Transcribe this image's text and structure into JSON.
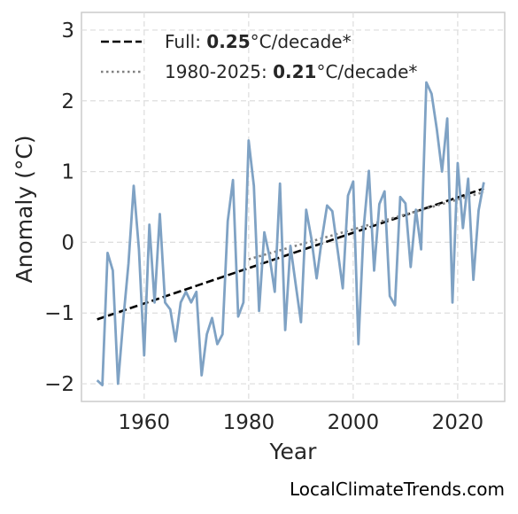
{
  "chart_data": {
    "type": "line",
    "xlabel": "Year",
    "ylabel": "Anomaly (°C)",
    "xlim": [
      1948,
      2029
    ],
    "ylim": [
      -2.25,
      3.25
    ],
    "xticks": [
      1960,
      1980,
      2000,
      2020
    ],
    "yticks": [
      -2,
      -1,
      0,
      1,
      2,
      3
    ],
    "grid": true,
    "legend_position": "top-left",
    "x": [
      1951,
      1952,
      1953,
      1954,
      1955,
      1956,
      1957,
      1958,
      1959,
      1960,
      1961,
      1962,
      1963,
      1964,
      1965,
      1966,
      1967,
      1968,
      1969,
      1970,
      1971,
      1972,
      1973,
      1974,
      1975,
      1976,
      1977,
      1978,
      1979,
      1980,
      1981,
      1982,
      1983,
      1984,
      1985,
      1986,
      1987,
      1988,
      1989,
      1990,
      1991,
      1992,
      1993,
      1994,
      1995,
      1996,
      1997,
      1998,
      1999,
      2000,
      2001,
      2002,
      2003,
      2004,
      2005,
      2006,
      2007,
      2008,
      2009,
      2010,
      2011,
      2012,
      2013,
      2014,
      2015,
      2016,
      2017,
      2018,
      2019,
      2020,
      2021,
      2022,
      2023,
      2024,
      2025
    ],
    "series": [
      {
        "color": "#7fa2c4",
        "values": [
          -1.95,
          -2.02,
          -0.15,
          -0.4,
          -2.0,
          -1.1,
          -0.3,
          0.8,
          -0.1,
          -1.6,
          0.25,
          -0.85,
          0.4,
          -0.85,
          -0.95,
          -1.4,
          -0.85,
          -0.7,
          -0.85,
          -0.7,
          -1.88,
          -1.3,
          -1.07,
          -1.44,
          -1.3,
          0.3,
          0.88,
          -1.05,
          -0.85,
          1.44,
          0.8,
          -0.97,
          0.14,
          -0.2,
          -0.7,
          0.83,
          -1.24,
          -0.05,
          -0.6,
          -1.13,
          0.46,
          0.05,
          -0.51,
          0.05,
          0.52,
          0.44,
          -0.1,
          -0.65,
          0.66,
          0.86,
          -1.44,
          0.2,
          1.01,
          -0.4,
          0.54,
          0.72,
          -0.76,
          -0.89,
          0.64,
          0.55,
          -0.35,
          0.46,
          -0.1,
          2.26,
          2.1,
          1.6,
          1.0,
          1.75,
          -0.85,
          1.12,
          0.2,
          0.9,
          -0.53,
          0.45,
          0.85
        ]
      }
    ],
    "trends": [
      {
        "label_prefix": "Full: ",
        "label_value": "0.25",
        "label_suffix": "°C/decade*",
        "style": "dashed",
        "color": "#000000",
        "x": [
          1951,
          2025
        ],
        "y": [
          -1.09,
          0.76
        ]
      },
      {
        "label_prefix": "1980-2025: ",
        "label_value": "0.21",
        "label_suffix": "°C/decade*",
        "style": "dotted",
        "color": "#808080",
        "x": [
          1980,
          2025
        ],
        "y": [
          -0.24,
          0.71
        ]
      }
    ],
    "credit": "LocalClimateTrends.com"
  }
}
